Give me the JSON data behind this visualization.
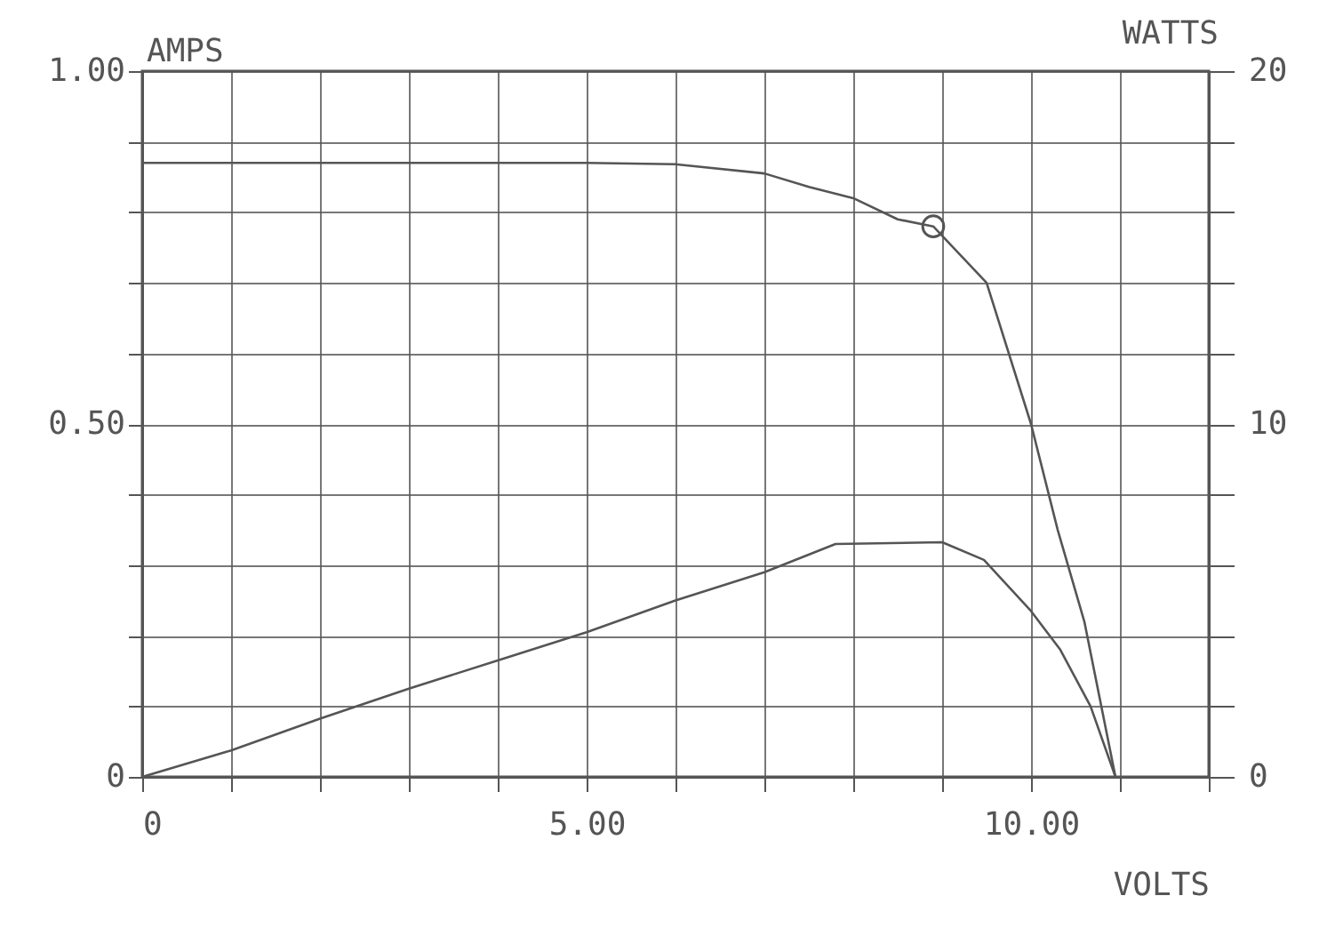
{
  "chart_data": {
    "type": "line",
    "xlabel": "VOLTS",
    "ylabel": "AMPS",
    "y2label": "WATTS",
    "xlim": [
      0,
      12
    ],
    "xticks": [
      {
        "value": 0,
        "label": "0"
      },
      {
        "value": 1,
        "label": null
      },
      {
        "value": 2,
        "label": null
      },
      {
        "value": 3,
        "label": null
      },
      {
        "value": 4,
        "label": null
      },
      {
        "value": 5,
        "label": "5.00"
      },
      {
        "value": 6,
        "label": null
      },
      {
        "value": 7,
        "label": null
      },
      {
        "value": 8,
        "label": null
      },
      {
        "value": 9,
        "label": null
      },
      {
        "value": 10,
        "label": "10.00"
      },
      {
        "value": 11,
        "label": null
      },
      {
        "value": 12,
        "label": null
      }
    ],
    "ylim": [
      0,
      1
    ],
    "yticks": [
      {
        "value": 0,
        "label": "0"
      },
      {
        "value": 0.1,
        "label": null
      },
      {
        "value": 0.2,
        "label": null
      },
      {
        "value": 0.3,
        "label": null
      },
      {
        "value": 0.4,
        "label": null
      },
      {
        "value": 0.5,
        "label": "0.50"
      },
      {
        "value": 0.6,
        "label": null
      },
      {
        "value": 0.7,
        "label": null
      },
      {
        "value": 0.8,
        "label": null
      },
      {
        "value": 0.9,
        "label": null
      },
      {
        "value": 1,
        "label": "1.00"
      }
    ],
    "y2lim": [
      0,
      20
    ],
    "y2ticks": [
      0,
      {
        "value": 2,
        "label": null
      },
      {
        "value": 4,
        "label": null
      },
      {
        "value": 6,
        "label": null
      },
      {
        "value": 8,
        "label": null
      },
      10,
      {
        "value": 12,
        "label": null
      },
      {
        "value": 14,
        "label": null
      },
      {
        "value": 16,
        "label": null
      },
      {
        "value": 18,
        "label": null
      },
      20
    ],
    "grid": true,
    "line_style": "solid",
    "series": [
      {
        "type": "line",
        "color": "#555555",
        "x": [
          0,
          1,
          2,
          3,
          4,
          5,
          6,
          7,
          7.5,
          8,
          8.5,
          8.9,
          9.5,
          10,
          10.3,
          10.6,
          10.95
        ],
        "values": [
          0.87,
          0.87,
          0.87,
          0.87,
          0.87,
          0.87,
          0.868,
          0.855,
          0.836,
          0.82,
          0.79,
          0.78,
          0.7,
          0.5,
          0.35,
          0.22,
          0
        ]
      },
      {
        "type": "scatter",
        "color": "#555555",
        "marker": "circle",
        "x": [
          8.9
        ],
        "values": [
          0.78
        ]
      },
      {
        "type": "line",
        "axis": "y2",
        "color": "#555555",
        "x": [
          0,
          1,
          2,
          3,
          4,
          5,
          6,
          7,
          7.8,
          9,
          9.47,
          10,
          10.33,
          10.67,
          10.95
        ],
        "values": [
          0,
          0.75,
          1.65,
          2.5,
          3.3,
          4.1,
          5.0,
          5.8,
          6.6,
          6.65,
          6.15,
          4.7,
          3.6,
          2.0,
          0
        ]
      }
    ]
  }
}
